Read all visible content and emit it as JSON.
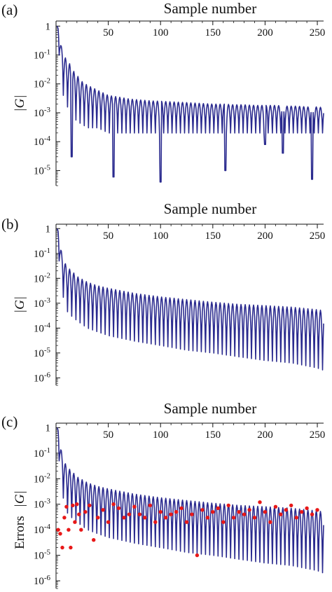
{
  "figure": {
    "panel_labels": [
      "(a)",
      "(b)",
      "(c)"
    ]
  },
  "colors": {
    "trace": "#2b2b8f",
    "points": "#e81818",
    "axis": "#111111"
  },
  "chart_data": [
    {
      "type": "line",
      "panel": "(a)",
      "title": "",
      "xlabel": "Sample number",
      "ylabel": "|G|",
      "x_ticks": [
        50,
        100,
        150,
        200,
        250
      ],
      "y_ticks": [
        "1",
        "10^-1",
        "10^-2",
        "10^-3",
        "10^-4",
        "10^-5"
      ],
      "xlim": [
        0,
        256
      ],
      "ylim": [
        3e-06,
        1.5
      ],
      "yscale": "log",
      "x_axis_position": "top",
      "grid": false,
      "legend": "none",
      "series": [
        {
          "style": "line",
          "x": [
            1,
            2,
            3,
            4,
            5,
            6,
            7,
            8,
            10,
            13,
            16,
            20,
            25,
            30,
            40,
            50,
            60,
            70,
            80,
            90,
            100,
            110,
            120,
            130,
            140,
            150,
            160,
            170,
            180,
            190,
            200,
            210,
            220,
            230,
            240,
            250,
            256
          ],
          "envelope_upper": [
            1.0,
            0.9,
            0.6,
            0.3,
            0.2,
            0.17,
            0.12,
            0.09,
            0.07,
            0.05,
            0.03,
            0.02,
            0.012,
            0.009,
            0.006,
            0.004,
            0.0035,
            0.003,
            0.0028,
            0.0026,
            0.0025,
            0.0024,
            0.0023,
            0.0022,
            0.0021,
            0.002,
            0.002,
            0.0019,
            0.0019,
            0.0018,
            0.0018,
            0.0018,
            0.0017,
            0.0017,
            0.0016,
            0.0016,
            0.0015
          ],
          "envelope_lower": [
            1.0,
            0.5,
            0.1,
            0.03,
            0.01,
            0.006,
            0.004,
            0.003,
            0.002,
            0.001,
            0.0008,
            0.0005,
            0.0004,
            0.0003,
            0.0003,
            0.0002,
            0.0002,
            0.0002,
            0.0002,
            0.0002,
            0.0002,
            0.0002,
            0.0002,
            0.0002,
            0.0002,
            0.0002,
            0.0002,
            0.0002,
            0.0002,
            0.0002,
            0.0002,
            0.0002,
            0.0002,
            0.0002,
            0.0002,
            0.0002,
            0.0002
          ],
          "deep_minima": [
            {
              "x": 15,
              "y": 3e-05
            },
            {
              "x": 55,
              "y": 6e-06
            },
            {
              "x": 100,
              "y": 4e-06
            },
            {
              "x": 162,
              "y": 1e-05
            },
            {
              "x": 200,
              "y": 8e-05
            },
            {
              "x": 217,
              "y": 4e-05
            },
            {
              "x": 245,
              "y": 5e-06
            }
          ],
          "oscillation_period": 4
        }
      ]
    },
    {
      "type": "line",
      "panel": "(b)",
      "title": "",
      "xlabel": "Sample number",
      "ylabel": "|G|",
      "x_ticks": [
        50,
        100,
        150,
        200,
        250
      ],
      "y_ticks": [
        "1",
        "10^-1",
        "10^-2",
        "10^-3",
        "10^-4",
        "10^-5",
        "10^-6"
      ],
      "xlim": [
        0,
        256
      ],
      "ylim": [
        5e-07,
        1.5
      ],
      "yscale": "log",
      "x_axis_position": "top",
      "grid": false,
      "legend": "none",
      "series": [
        {
          "style": "line",
          "x": [
            1,
            2,
            3,
            4,
            6,
            8,
            10,
            15,
            20,
            30,
            40,
            50,
            75,
            100,
            125,
            150,
            175,
            200,
            225,
            250,
            256
          ],
          "envelope_upper": [
            1.0,
            0.9,
            0.5,
            0.2,
            0.08,
            0.05,
            0.03,
            0.02,
            0.012,
            0.007,
            0.005,
            0.004,
            0.0025,
            0.0018,
            0.0014,
            0.0011,
            0.0009,
            0.0008,
            0.0007,
            0.00055,
            0.0005
          ],
          "envelope_lower": [
            1.0,
            0.4,
            0.05,
            0.01,
            0.003,
            0.001,
            0.0005,
            0.0003,
            0.0002,
            0.0001,
            7e-05,
            5e-05,
            3e-05,
            2e-05,
            1.3e-05,
            1e-05,
            7e-06,
            5e-06,
            4e-06,
            2.5e-06,
            2e-06
          ],
          "oscillation_period": 4
        }
      ]
    },
    {
      "type": "scatter",
      "panel": "(c)",
      "title": "",
      "xlabel": "Sample number",
      "ylabel": "Errors |G|",
      "ylabel_parts": [
        "Errors",
        "|G|"
      ],
      "x_ticks": [
        50,
        100,
        150,
        200,
        250
      ],
      "y_ticks": [
        "1",
        "10^-1",
        "10^-2",
        "10^-3",
        "10^-4",
        "10^-5",
        "10^-6"
      ],
      "xlim": [
        0,
        256
      ],
      "ylim": [
        5e-07,
        1.5
      ],
      "yscale": "log",
      "x_axis_position": "top",
      "grid": false,
      "legend": "none",
      "series": [
        {
          "style": "line",
          "x": [
            1,
            2,
            3,
            4,
            6,
            8,
            10,
            15,
            20,
            30,
            40,
            50,
            75,
            100,
            125,
            150,
            175,
            200,
            225,
            250,
            256
          ],
          "envelope_upper": [
            1.0,
            0.9,
            0.5,
            0.2,
            0.08,
            0.05,
            0.03,
            0.02,
            0.012,
            0.007,
            0.005,
            0.004,
            0.0025,
            0.0018,
            0.0014,
            0.0011,
            0.0009,
            0.0008,
            0.0007,
            0.00055,
            0.0005
          ],
          "envelope_lower": [
            1.0,
            0.4,
            0.05,
            0.01,
            0.003,
            0.001,
            0.0005,
            0.0003,
            0.0002,
            0.0001,
            7e-05,
            5e-05,
            3e-05,
            2e-05,
            1.3e-05,
            1e-05,
            7e-06,
            5e-06,
            4e-06,
            2.5e-06,
            2e-06
          ],
          "oscillation_period": 4
        },
        {
          "style": "points",
          "x": [
            2,
            4,
            6,
            8,
            10,
            12,
            14,
            16,
            18,
            20,
            22,
            24,
            28,
            32,
            36,
            40,
            45,
            50,
            55,
            60,
            65,
            70,
            75,
            80,
            85,
            90,
            95,
            100,
            105,
            110,
            115,
            120,
            125,
            130,
            135,
            140,
            145,
            150,
            155,
            160,
            165,
            170,
            175,
            180,
            185,
            190,
            195,
            200,
            205,
            210,
            215,
            220,
            225,
            230,
            235,
            240,
            245,
            250
          ],
          "y": [
            0.0001,
            7e-05,
            2e-05,
            0.0003,
            0.0008,
            0.0001,
            2e-05,
            0.0009,
            0.0002,
            0.001,
            0.0004,
            0.0001,
            0.0005,
            0.0009,
            4e-05,
            0.0003,
            0.0006,
            0.0002,
            0.001,
            0.0007,
            0.0003,
            0.0004,
            0.0008,
            0.0004,
            0.0003,
            0.0009,
            0.0002,
            0.0005,
            0.0003,
            0.0004,
            0.0005,
            0.0007,
            0.0002,
            0.0004,
            1e-05,
            0.0006,
            0.0003,
            0.0005,
            0.0007,
            0.0002,
            0.0009,
            0.0003,
            0.0005,
            0.0004,
            0.0006,
            0.0003,
            0.0012,
            0.0005,
            0.0002,
            0.0008,
            0.0004,
            0.0006,
            0.0009,
            0.0003,
            0.0005,
            0.0007,
            0.0004,
            0.0006
          ]
        }
      ]
    }
  ]
}
